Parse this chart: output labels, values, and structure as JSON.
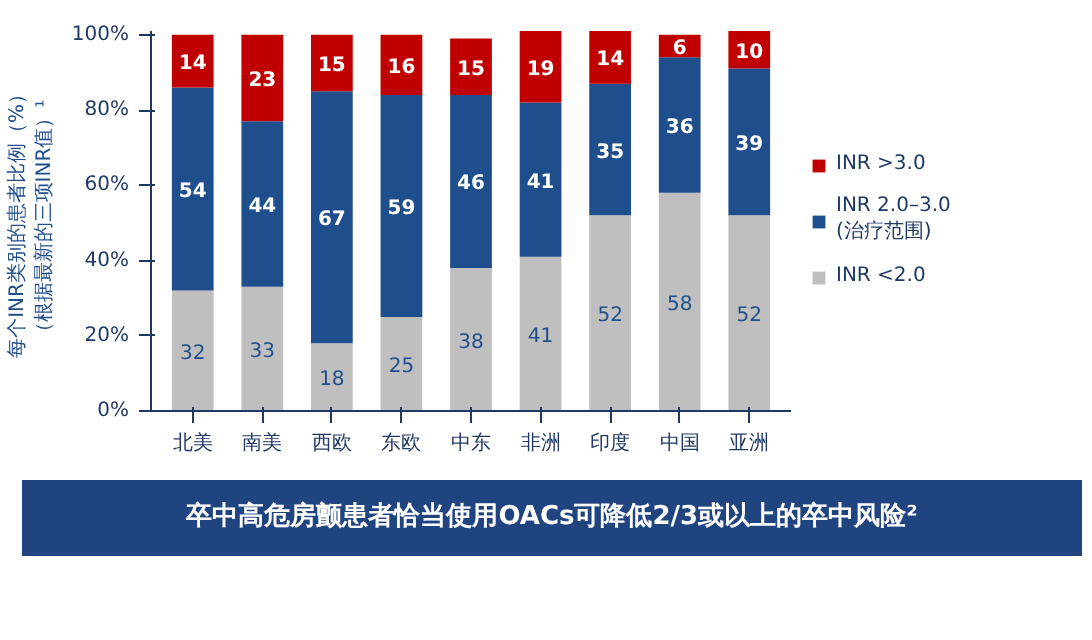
{
  "chart_data": {
    "type": "bar",
    "stacked": true,
    "categories": [
      "北美",
      "南美",
      "西欧",
      "东欧",
      "中东",
      "非洲",
      "印度",
      "中国",
      "亚洲"
    ],
    "ylabel": "每个INR类别的患者比例（%）（根据最新的三项INR值）¹",
    "series": [
      {
        "name": "INR <2.0",
        "color": "#bfbfbf",
        "values": [
          32,
          33,
          18,
          25,
          38,
          41,
          52,
          58,
          52
        ]
      },
      {
        "name": "INR 2.0–3.0\n(治疗范围)",
        "color": "#1f4e8c",
        "values": [
          54,
          44,
          67,
          59,
          46,
          41,
          35,
          36,
          39
        ]
      },
      {
        "name": "INR >3.0",
        "color": "#c00000",
        "values": [
          14,
          23,
          15,
          16,
          15,
          19,
          14,
          6,
          10
        ]
      }
    ],
    "ylim": [
      0,
      101
    ],
    "yticks": [
      {
        "value": 0,
        "label": "0%"
      },
      {
        "value": 20,
        "label": "20%"
      },
      {
        "value": 40,
        "label": "40%"
      },
      {
        "value": 60,
        "label": "60%"
      },
      {
        "value": 80,
        "label": "80%"
      },
      {
        "value": 100,
        "label": "100%"
      }
    ],
    "data_labels": true,
    "grid": false,
    "legend": "right",
    "annotations": [
      "卒中高危房颤患者恰当使用OACs可降低2/3或以上的卒中风险²"
    ]
  }
}
